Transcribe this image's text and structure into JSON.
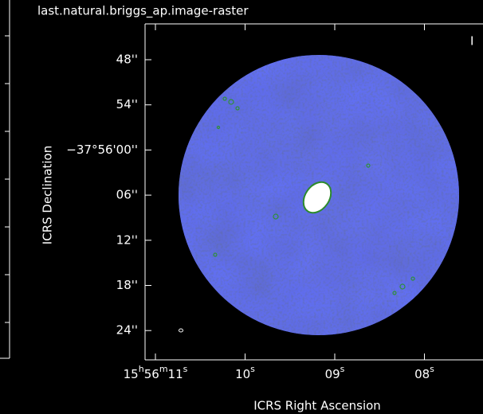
{
  "header": {
    "title": "last.natural.briggs_ap.image-raster"
  },
  "axes": {
    "x_label": "ICRS Right Ascension",
    "y_label": "ICRS Declination",
    "x_ticks": [
      "15h56m11s",
      "10s",
      "09s",
      "08s"
    ],
    "y_ticks": [
      "48''",
      "54''",
      "−37°56'00''",
      "06''",
      "12''",
      "18''",
      "24''"
    ]
  },
  "corner_label": "I"
}
